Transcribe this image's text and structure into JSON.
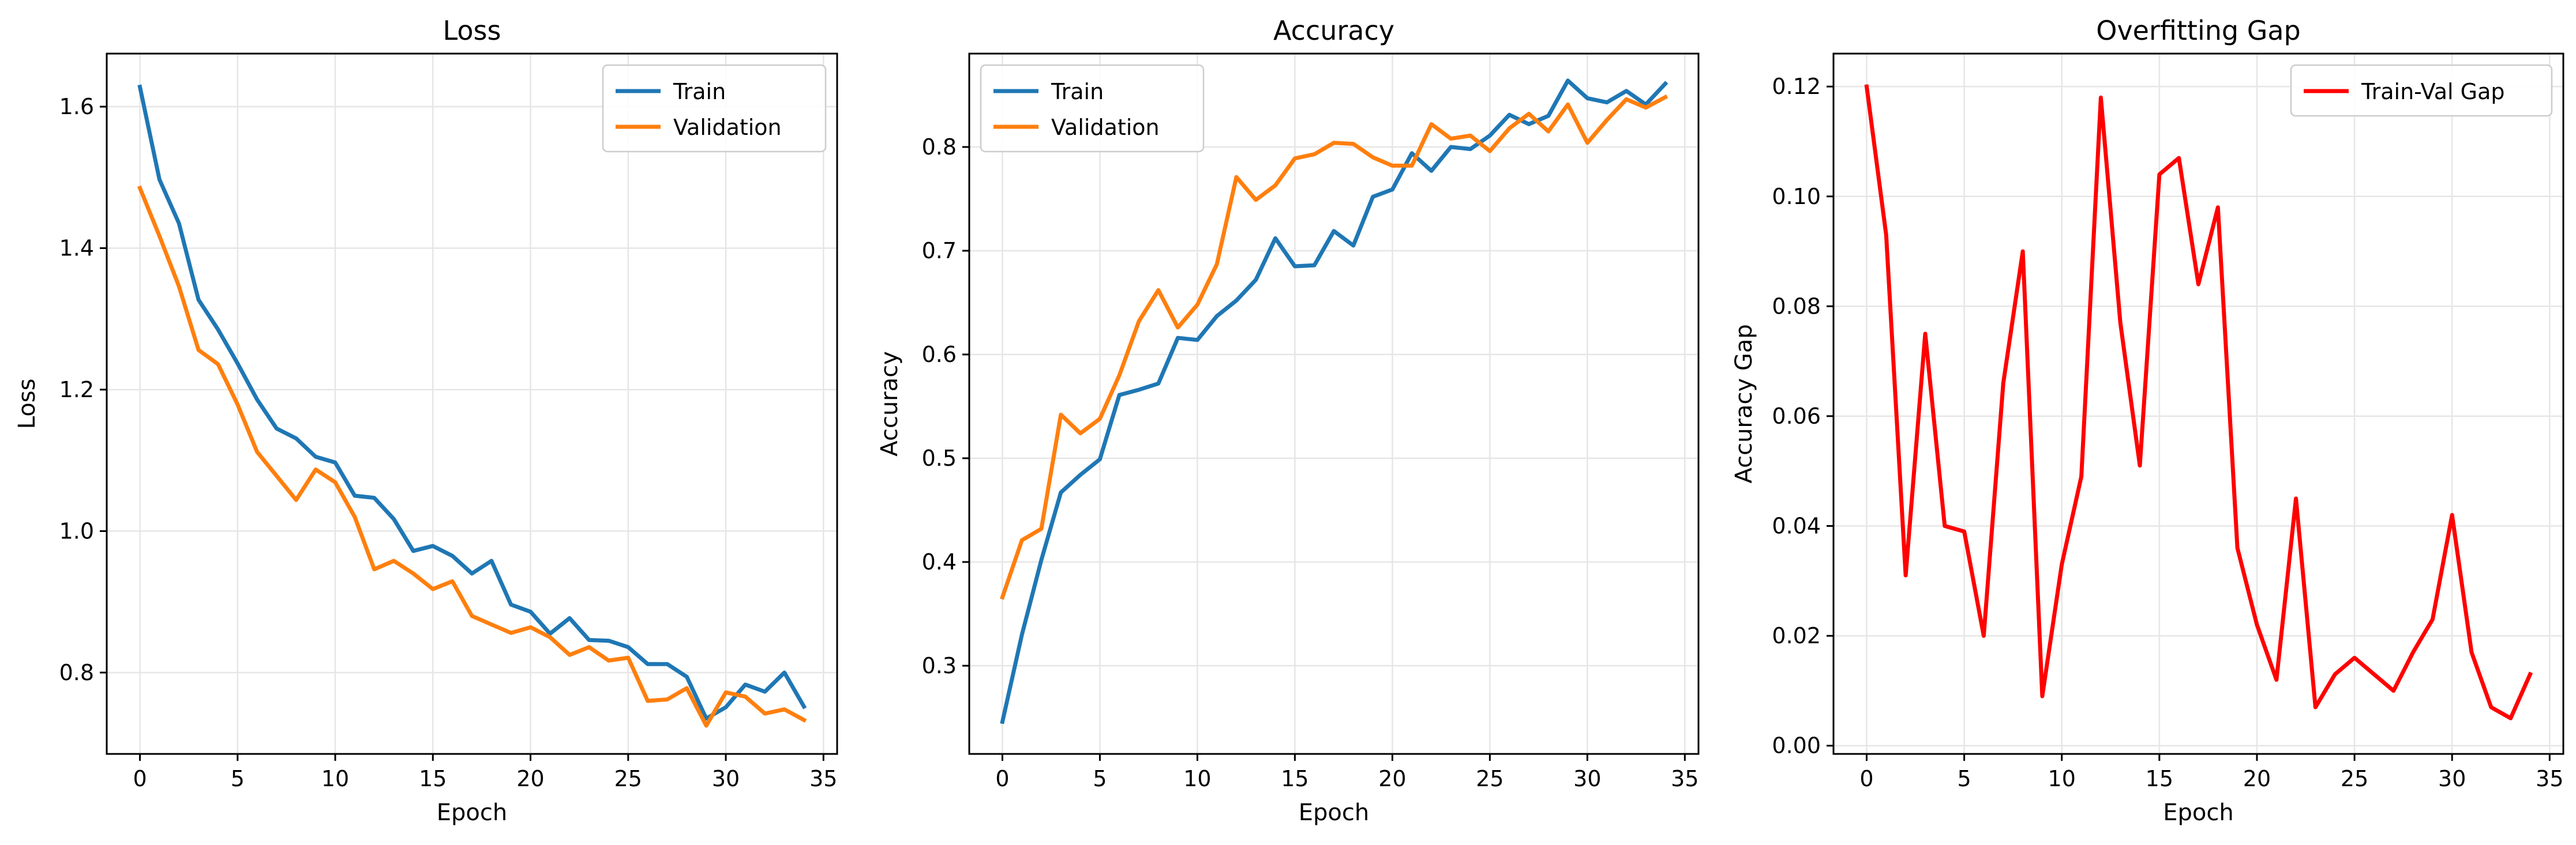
{
  "colors": {
    "train": "#1f77b4",
    "validation": "#ff7f0e",
    "gap": "#ff0000",
    "grid": "#e6e6e6",
    "axes": "#000000"
  },
  "chart_data": [
    {
      "type": "line",
      "title": "Loss",
      "xlabel": "Epoch",
      "ylabel": "Loss",
      "xlim": [
        -1.7,
        35.7
      ],
      "ylim": [
        0.685,
        1.675
      ],
      "xticks": [
        0,
        5,
        10,
        15,
        20,
        25,
        30,
        35
      ],
      "yticks": [
        0.8,
        1.0,
        1.2,
        1.4,
        1.6
      ],
      "ytick_decimals": 1,
      "grid": true,
      "legend": "top-right",
      "x": [
        0,
        1,
        2,
        3,
        4,
        5,
        6,
        7,
        8,
        9,
        10,
        11,
        12,
        13,
        14,
        15,
        16,
        17,
        18,
        19,
        20,
        21,
        22,
        23,
        24,
        25,
        26,
        27,
        28,
        29,
        30,
        31,
        32,
        33,
        34
      ],
      "series": [
        {
          "name": "Train",
          "color": "#1f77b4",
          "values": [
            1.628,
            1.497,
            1.435,
            1.327,
            1.285,
            1.237,
            1.186,
            1.145,
            1.131,
            1.105,
            1.097,
            1.05,
            1.047,
            1.017,
            0.972,
            0.979,
            0.965,
            0.94,
            0.958,
            0.896,
            0.886,
            0.855,
            0.877,
            0.846,
            0.845,
            0.836,
            0.812,
            0.812,
            0.794,
            0.735,
            0.751,
            0.783,
            0.773,
            0.8,
            0.752
          ]
        },
        {
          "name": "Validation",
          "color": "#ff7f0e",
          "values": [
            1.485,
            1.417,
            1.346,
            1.256,
            1.236,
            1.179,
            1.112,
            1.078,
            1.044,
            1.087,
            1.069,
            1.02,
            0.946,
            0.958,
            0.94,
            0.918,
            0.929,
            0.88,
            0.868,
            0.856,
            0.864,
            0.85,
            0.825,
            0.836,
            0.817,
            0.821,
            0.76,
            0.762,
            0.778,
            0.725,
            0.772,
            0.766,
            0.742,
            0.748,
            0.733
          ]
        }
      ]
    },
    {
      "type": "line",
      "title": "Accuracy",
      "xlabel": "Epoch",
      "ylabel": "Accuracy",
      "xlim": [
        -1.7,
        35.7
      ],
      "ylim": [
        0.215,
        0.89
      ],
      "xticks": [
        0,
        5,
        10,
        15,
        20,
        25,
        30,
        35
      ],
      "yticks": [
        0.3,
        0.4,
        0.5,
        0.6,
        0.7,
        0.8
      ],
      "ytick_decimals": 1,
      "grid": true,
      "legend": "top-left",
      "x": [
        0,
        1,
        2,
        3,
        4,
        5,
        6,
        7,
        8,
        9,
        10,
        11,
        12,
        13,
        14,
        15,
        16,
        17,
        18,
        19,
        20,
        21,
        22,
        23,
        24,
        25,
        26,
        27,
        28,
        29,
        30,
        31,
        32,
        33,
        34
      ],
      "series": [
        {
          "name": "Train",
          "color": "#1f77b4",
          "values": [
            0.246,
            0.33,
            0.402,
            0.467,
            0.484,
            0.499,
            0.561,
            0.566,
            0.572,
            0.616,
            0.614,
            0.637,
            0.652,
            0.672,
            0.712,
            0.685,
            0.686,
            0.719,
            0.705,
            0.752,
            0.759,
            0.794,
            0.777,
            0.8,
            0.798,
            0.811,
            0.831,
            0.822,
            0.83,
            0.864,
            0.847,
            0.843,
            0.854,
            0.841,
            0.861
          ]
        },
        {
          "name": "Validation",
          "color": "#ff7f0e",
          "values": [
            0.366,
            0.421,
            0.432,
            0.542,
            0.524,
            0.538,
            0.58,
            0.632,
            0.662,
            0.626,
            0.648,
            0.687,
            0.771,
            0.749,
            0.763,
            0.789,
            0.793,
            0.804,
            0.803,
            0.79,
            0.782,
            0.782,
            0.822,
            0.808,
            0.811,
            0.796,
            0.818,
            0.832,
            0.815,
            0.841,
            0.804,
            0.826,
            0.846,
            0.838,
            0.848
          ]
        }
      ]
    },
    {
      "type": "line",
      "title": "Overfitting Gap",
      "xlabel": "Epoch",
      "ylabel": "Accuracy Gap",
      "xlim": [
        -1.7,
        35.7
      ],
      "ylim": [
        -0.0015,
        0.126
      ],
      "xticks": [
        0,
        5,
        10,
        15,
        20,
        25,
        30,
        35
      ],
      "yticks": [
        0.0,
        0.02,
        0.04,
        0.06,
        0.08,
        0.1,
        0.12
      ],
      "ytick_decimals": 2,
      "grid": true,
      "legend": "top-right",
      "x": [
        0,
        1,
        2,
        3,
        4,
        5,
        6,
        7,
        8,
        9,
        10,
        11,
        12,
        13,
        14,
        15,
        16,
        17,
        18,
        19,
        20,
        21,
        22,
        23,
        24,
        25,
        26,
        27,
        28,
        29,
        30,
        31,
        32,
        33,
        34
      ],
      "series": [
        {
          "name": "Train-Val Gap",
          "color": "#ff0000",
          "values": [
            0.12,
            0.093,
            0.031,
            0.075,
            0.04,
            0.039,
            0.02,
            0.066,
            0.09,
            0.009,
            0.033,
            0.049,
            0.118,
            0.077,
            0.051,
            0.104,
            0.107,
            0.084,
            0.098,
            0.036,
            0.022,
            0.012,
            0.045,
            0.007,
            0.013,
            0.016,
            0.013,
            0.01,
            0.017,
            0.023,
            0.042,
            0.017,
            0.007,
            0.005,
            0.013
          ]
        }
      ]
    }
  ]
}
